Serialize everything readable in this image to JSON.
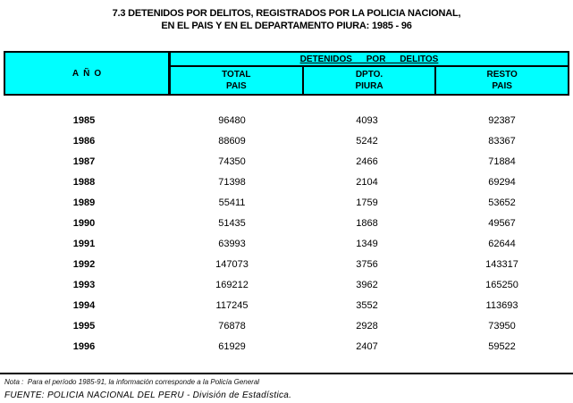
{
  "title": {
    "line1": "7.3  DETENIDOS POR DELITOS, REGISTRADOS POR LA POLICIA NACIONAL,",
    "line2": "EN EL PAIS Y EN EL DEPARTAMENTO PIURA: 1985 - 96"
  },
  "table": {
    "year_header": "AÑO",
    "band_header": "DETENIDOS POR DELITOS",
    "columns": [
      {
        "line1": "TOTAL",
        "line2": "PAIS"
      },
      {
        "line1": "DPTO.",
        "line2": "PIURA"
      },
      {
        "line1": "RESTO",
        "line2": "PAIS"
      }
    ],
    "rows": [
      {
        "year": "1985",
        "total": "96480",
        "dpto": "4093",
        "resto": "92387"
      },
      {
        "year": "1986",
        "total": "88609",
        "dpto": "5242",
        "resto": "83367"
      },
      {
        "year": "1987",
        "total": "74350",
        "dpto": "2466",
        "resto": "71884"
      },
      {
        "year": "1988",
        "total": "71398",
        "dpto": "2104",
        "resto": "69294"
      },
      {
        "year": "1989",
        "total": "55411",
        "dpto": "1759",
        "resto": "53652"
      },
      {
        "year": "1990",
        "total": "51435",
        "dpto": "1868",
        "resto": "49567"
      },
      {
        "year": "1991",
        "total": "63993",
        "dpto": "1349",
        "resto": "62644"
      },
      {
        "year": "1992",
        "total": "147073",
        "dpto": "3756",
        "resto": "143317"
      },
      {
        "year": "1993",
        "total": "169212",
        "dpto": "3962",
        "resto": "165250"
      },
      {
        "year": "1994",
        "total": "117245",
        "dpto": "3552",
        "resto": "113693"
      },
      {
        "year": "1995",
        "total": "76878",
        "dpto": "2928",
        "resto": "73950"
      },
      {
        "year": "1996",
        "total": "61929",
        "dpto": "2407",
        "resto": "59522"
      }
    ]
  },
  "footer": {
    "note": "Nota :  Para el período 1985-91, la información corresponde a la Policía General",
    "source": "FUENTE: POLICIA NACIONAL DEL PERU - División de Estadística."
  },
  "colors": {
    "header_bg": "#00FFFF",
    "border": "#000000"
  }
}
